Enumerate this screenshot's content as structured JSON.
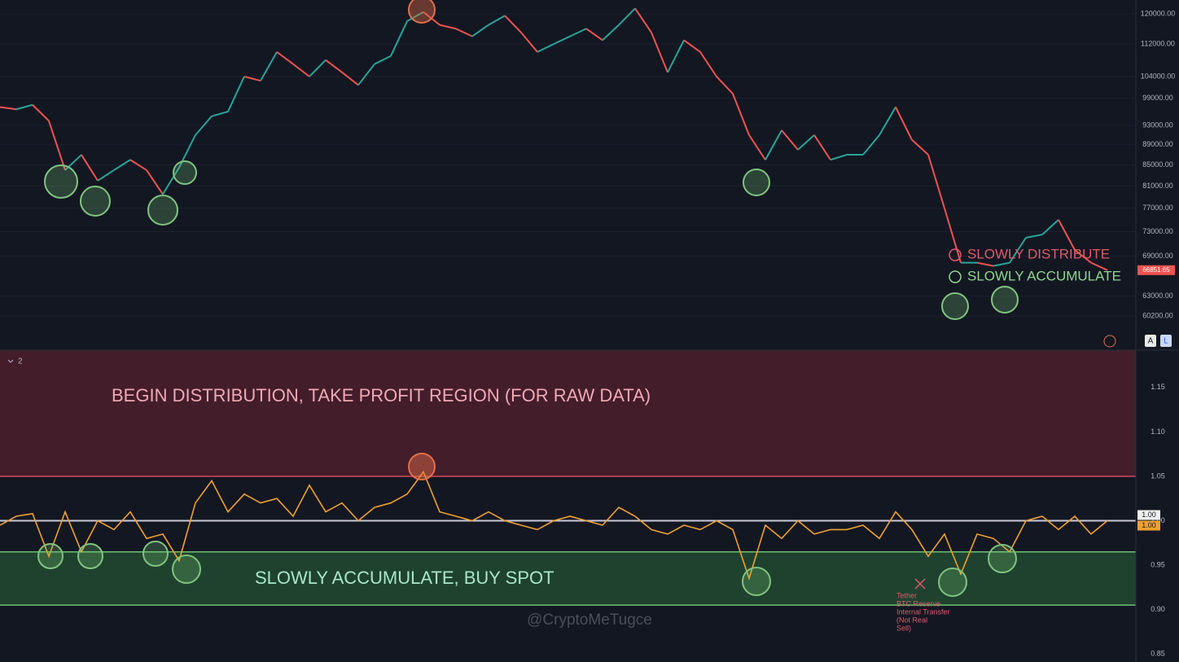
{
  "chart_data": [
    {
      "type": "line",
      "scale": "log",
      "grid": true,
      "categories": [
        null,
        null,
        null,
        null,
        null,
        null,
        null,
        null,
        null,
        null,
        null,
        null,
        null,
        null,
        null,
        null,
        null,
        null,
        null,
        null,
        null,
        null,
        null,
        null,
        null,
        null,
        null,
        null,
        null,
        null,
        null,
        null,
        null,
        null,
        null,
        null,
        null,
        null,
        null,
        null,
        null,
        null,
        null,
        null,
        null,
        null,
        null,
        null,
        null,
        null,
        null,
        null,
        null,
        null,
        null,
        null,
        null,
        null,
        null,
        null,
        null,
        null,
        null,
        null,
        null,
        null,
        null,
        null,
        null
      ],
      "up_color": "#26a69a",
      "down_color": "#ef5350",
      "series": [
        {
          "values": [
            97000,
            96500,
            97500,
            94000,
            84000,
            87000,
            82000,
            84000,
            86000,
            84000,
            79500,
            84500,
            91000,
            95000,
            96000,
            104000,
            103000,
            110000,
            107000,
            104000,
            108000,
            105000,
            102000,
            107000,
            109000,
            118000,
            120500,
            117000,
            116000,
            114000,
            117000,
            119500,
            115000,
            110000,
            112000,
            114000,
            116000,
            113000,
            117000,
            121500,
            115000,
            105000,
            113000,
            110000,
            104000,
            100000,
            91000,
            86000,
            92000,
            88000,
            91000,
            86000,
            87000,
            87000,
            91000,
            97000,
            90000,
            87000,
            77000,
            68000,
            68000,
            67500,
            68000,
            72000,
            72500,
            75000,
            70000,
            68000,
            66851.65
          ]
        }
      ],
      "ylim": [
        55700,
        123850
      ],
      "yticks": [
        {
          "value": 120000,
          "label": "120000.00"
        },
        {
          "value": 112000,
          "label": "112000.00"
        },
        {
          "value": 104000,
          "label": "104000.00"
        },
        {
          "value": 99000,
          "label": "99000.00"
        },
        {
          "value": 93000,
          "label": "93000.00"
        },
        {
          "value": 89000,
          "label": "89000.00"
        },
        {
          "value": 85000,
          "label": "85000.00"
        },
        {
          "value": 81000,
          "label": "81000.00"
        },
        {
          "value": 77000,
          "label": "77000.00"
        },
        {
          "value": 73000,
          "label": "73000.00"
        },
        {
          "value": 69000,
          "label": "69000.00"
        },
        {
          "value": 63000,
          "label": "63000.00"
        },
        {
          "value": 60200,
          "label": "60200.00"
        }
      ],
      "last_price": 66851.65,
      "legend": [
        {
          "label": "SLOWLY DISTRIBUTE",
          "color": "#e05a6a"
        },
        {
          "label": "SLOWLY ACCUMULATE",
          "color": "#8fd68f"
        }
      ]
    },
    {
      "type": "line",
      "grid": false,
      "pane_number": 2,
      "categories": [
        null,
        null,
        null,
        null,
        null,
        null,
        null,
        null,
        null,
        null,
        null,
        null,
        null,
        null,
        null,
        null,
        null,
        null,
        null,
        null,
        null,
        null,
        null,
        null,
        null,
        null,
        null,
        null,
        null,
        null,
        null,
        null,
        null,
        null,
        null,
        null,
        null,
        null,
        null,
        null,
        null,
        null,
        null,
        null,
        null,
        null,
        null,
        null,
        null,
        null,
        null,
        null,
        null,
        null,
        null,
        null,
        null,
        null,
        null,
        null,
        null,
        null,
        null,
        null,
        null,
        null,
        null,
        null,
        null
      ],
      "series": [
        {
          "color": "#f0a030",
          "values": [
            0.995,
            1.005,
            1.008,
            0.96,
            1.01,
            0.965,
            1.0,
            0.99,
            1.01,
            0.98,
            0.985,
            0.955,
            1.02,
            1.045,
            1.01,
            1.03,
            1.02,
            1.025,
            1.005,
            1.04,
            1.01,
            1.02,
            1.0,
            1.015,
            1.02,
            1.03,
            1.055,
            1.01,
            1.005,
            1.0,
            1.01,
            1.0,
            0.995,
            0.99,
            1.0,
            1.005,
            1.0,
            0.995,
            1.015,
            1.005,
            0.99,
            0.985,
            0.995,
            0.99,
            1.0,
            0.99,
            0.935,
            0.995,
            0.98,
            1.0,
            0.985,
            0.99,
            0.99,
            0.995,
            0.98,
            1.01,
            0.99,
            0.96,
            0.985,
            0.94,
            0.985,
            0.98,
            0.965,
            1.0,
            1.005,
            0.99,
            1.005,
            0.985,
            1.0
          ],
          "last_label": "1.00"
        }
      ],
      "ylim": [
        0.841,
        1.192
      ],
      "yticks": [
        1.15,
        {
          "value": 1.1,
          "label": "1.10"
        },
        1.05,
        {
          "value": 1,
          "label": "1.00"
        },
        0.95,
        {
          "value": 0.9,
          "label": "0.90"
        },
        0.85
      ],
      "reference_line": {
        "value": 1,
        "label": "1.00"
      },
      "distribution_zone": {
        "from": 1.05,
        "label": "BEGIN DISTRIBUTION, TAKE PROFIT REGION (FOR RAW DATA)"
      },
      "accumulation_zone": {
        "from": 0.905,
        "to": 0.965,
        "label": "SLOWLY ACCUMULATE, BUY SPOT"
      },
      "note": [
        "Tether",
        "BTC Reserve",
        "Internal Transfer",
        "(Not Real",
        "Sell)"
      ],
      "watermark": "@CryptoMeTugce"
    }
  ],
  "ui": {
    "buttons": [
      "A",
      "L"
    ]
  }
}
